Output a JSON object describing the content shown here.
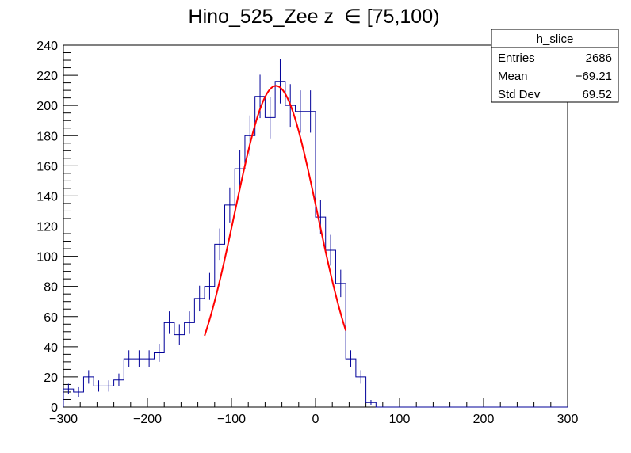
{
  "title": "Hino_525_Zee z",
  "title_symbol": "∈",
  "title_range": "[75,100)",
  "stats_box": {
    "name": "h_slice",
    "rows": [
      {
        "label": "Entries",
        "value": "2686"
      },
      {
        "label": "Mean",
        "value": "−69.21"
      },
      {
        "label": "Std Dev",
        "value": "69.52"
      }
    ]
  },
  "colors": {
    "histogram": "#000099",
    "fit": "#ff0000",
    "axis": "#000000",
    "background": "#ffffff"
  },
  "chart_data": {
    "type": "histogram",
    "xlim": [
      -300,
      300
    ],
    "ylim": [
      0,
      240
    ],
    "x_tick_labels": [
      "−300",
      "−200",
      "−100",
      "0",
      "100",
      "200",
      "300"
    ],
    "x_tick_values": [
      -300,
      -200,
      -100,
      0,
      100,
      200,
      300
    ],
    "y_tick_labels": [
      "0",
      "20",
      "40",
      "60",
      "80",
      "100",
      "120",
      "140",
      "160",
      "180",
      "200",
      "220",
      "240"
    ],
    "y_tick_values": [
      0,
      20,
      40,
      60,
      80,
      100,
      120,
      140,
      160,
      180,
      200,
      220,
      240
    ],
    "grid": false,
    "legend": "top-right stats box",
    "bin_width": 12,
    "bin_low_edges": [
      -300,
      -288,
      -276,
      -264,
      -252,
      -240,
      -228,
      -216,
      -204,
      -192,
      -180,
      -168,
      -156,
      -144,
      -132,
      -120,
      -108,
      -96,
      -84,
      -72,
      -60,
      -48,
      -36,
      -24,
      -12,
      0,
      12,
      24,
      36,
      48,
      60,
      72,
      84,
      96,
      108,
      120,
      132,
      144,
      156,
      168,
      180,
      192,
      204,
      216,
      228,
      240,
      252,
      264,
      276,
      288
    ],
    "counts": [
      12,
      10,
      20,
      14,
      14,
      18,
      32,
      32,
      32,
      36,
      56,
      48,
      56,
      72,
      80,
      108,
      134,
      158,
      180,
      206,
      192,
      216,
      200,
      196,
      196,
      126,
      104,
      82,
      32,
      20,
      3,
      0,
      0,
      0,
      0,
      0,
      0,
      0,
      0,
      0,
      0,
      0,
      0,
      0,
      0,
      0,
      0,
      0,
      0,
      0
    ],
    "fit": {
      "function": "gaus",
      "constant": 213,
      "mean": -47,
      "sigma": 49,
      "range": [
        -132,
        36
      ]
    }
  }
}
